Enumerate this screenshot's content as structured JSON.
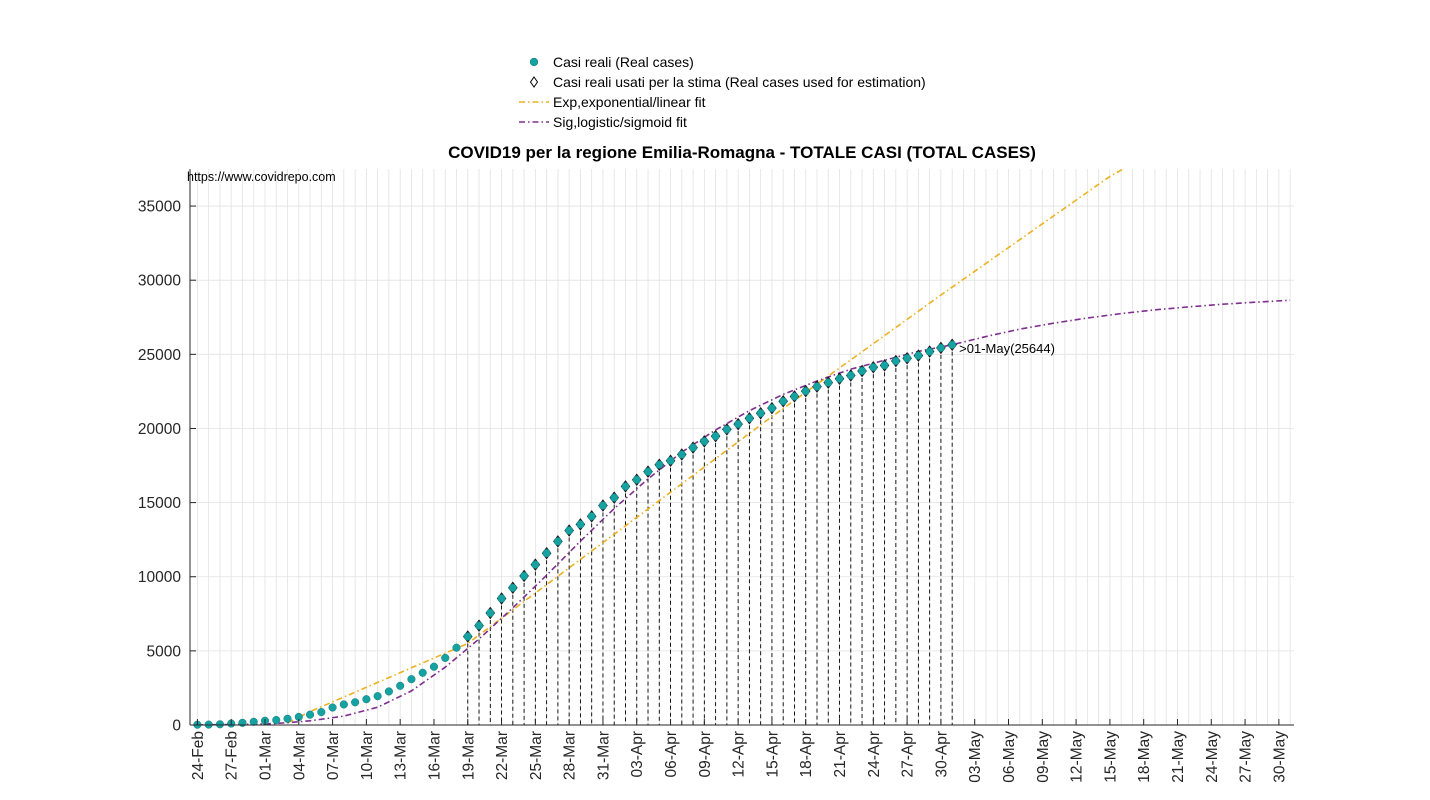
{
  "title": "COVID19 per la regione Emilia-Romagna - TOTALE CASI (TOTAL CASES)",
  "source_url": "https://www.covidrepo.com",
  "colors": {
    "real": "#17a2a2",
    "used_fill": "#2f6f92",
    "exp": "#edb120",
    "sig": "#7e2f8e",
    "grid": "#e2e2e2"
  },
  "legend": [
    {
      "label": "Casi reali (Real cases)",
      "symbol": "filled-circle"
    },
    {
      "label": "Casi reali usati per la stima (Real cases used for estimation)",
      "symbol": "diamond"
    },
    {
      "label": "Exp,exponential/linear fit",
      "symbol": "dashdot-line"
    },
    {
      "label": "Sig,logistic/sigmoid fit",
      "symbol": "dashdot-line"
    }
  ],
  "annotation": {
    "text": ">01-May(25644)"
  },
  "chart_data": {
    "type": "line",
    "title": "COVID19 per la regione Emilia-Romagna - TOTALE CASI (TOTAL CASES)",
    "xlabel": "",
    "ylabel": "",
    "ylim": [
      0,
      37500
    ],
    "yticks": [
      0,
      5000,
      10000,
      15000,
      20000,
      25000,
      30000,
      35000
    ],
    "x_range": [
      "2020-02-24",
      "2020-05-31"
    ],
    "xtick_labels": [
      "24-Feb",
      "27-Feb",
      "01-Mar",
      "04-Mar",
      "07-Mar",
      "10-Mar",
      "13-Mar",
      "16-Mar",
      "19-Mar",
      "22-Mar",
      "25-Mar",
      "28-Mar",
      "31-Mar",
      "03-Apr",
      "06-Apr",
      "09-Apr",
      "12-Apr",
      "15-Apr",
      "18-Apr",
      "21-Apr",
      "24-Apr",
      "27-Apr",
      "30-Apr",
      "03-May",
      "06-May",
      "09-May",
      "12-May",
      "15-May",
      "18-May",
      "21-May",
      "24-May",
      "27-May",
      "30-May"
    ],
    "grid": true,
    "legend_position": "top-center",
    "series": [
      {
        "name": "Casi reali (Real cases)",
        "style": "markers",
        "x": [
          "2020-02-24",
          "2020-02-25",
          "2020-02-26",
          "2020-02-27",
          "2020-02-28",
          "2020-02-29",
          "2020-03-01",
          "2020-03-02",
          "2020-03-03",
          "2020-03-04",
          "2020-03-05",
          "2020-03-06",
          "2020-03-07",
          "2020-03-08",
          "2020-03-09",
          "2020-03-10",
          "2020-03-11",
          "2020-03-12",
          "2020-03-13",
          "2020-03-14",
          "2020-03-15",
          "2020-03-16",
          "2020-03-17",
          "2020-03-18",
          "2020-03-19",
          "2020-03-20",
          "2020-03-21",
          "2020-03-22",
          "2020-03-23",
          "2020-03-24",
          "2020-03-25",
          "2020-03-26",
          "2020-03-27",
          "2020-03-28",
          "2020-03-29",
          "2020-03-30",
          "2020-03-31",
          "2020-04-01",
          "2020-04-02",
          "2020-04-03",
          "2020-04-04",
          "2020-04-05",
          "2020-04-06",
          "2020-04-07",
          "2020-04-08",
          "2020-04-09",
          "2020-04-10",
          "2020-04-11",
          "2020-04-12",
          "2020-04-13",
          "2020-04-14",
          "2020-04-15",
          "2020-04-16",
          "2020-04-17",
          "2020-04-18",
          "2020-04-19",
          "2020-04-20",
          "2020-04-21",
          "2020-04-22",
          "2020-04-23",
          "2020-04-24",
          "2020-04-25",
          "2020-04-26",
          "2020-04-27",
          "2020-04-28",
          "2020-04-29",
          "2020-04-30",
          "2020-05-01"
        ],
        "y": [
          18,
          26,
          47,
          97,
          145,
          217,
          285,
          335,
          420,
          544,
          698,
          870,
          1180,
          1386,
          1533,
          1739,
          1947,
          2263,
          2644,
          3093,
          3522,
          3931,
          4525,
          5214,
          5968,
          6705,
          7555,
          8535,
          9254,
          10054,
          10816,
          11588,
          12383,
          13119,
          13531,
          14074,
          14803,
          15333,
          16093,
          16540,
          17089,
          17556,
          17825,
          18241,
          18710,
          19128,
          19481,
          19936,
          20290,
          20685,
          21029,
          21374,
          21834,
          22160,
          22518,
          22825,
          23094,
          23355,
          23576,
          23879,
          24127,
          24257,
          24547,
          24735,
          24916,
          25188,
          25436,
          25644
        ]
      },
      {
        "name": "Casi reali usati per la stima (Real cases used for estimation)",
        "style": "diamonds",
        "x_from": "2020-03-19",
        "x_to": "2020-05-01",
        "note_values": "same values as real cases for those dates"
      },
      {
        "name": "Exp,exponential/linear fit",
        "style": "dashdot",
        "x": [
          "2020-03-03",
          "2020-03-05",
          "2020-03-19",
          "2020-04-15",
          "2020-04-30",
          "2020-05-15",
          "2020-05-22"
        ],
        "y": [
          150,
          900,
          5500,
          20800,
          29000,
          37000,
          40000
        ]
      },
      {
        "name": "Sig,logistic/sigmoid fit",
        "style": "dashdot",
        "x": [
          "2020-02-24",
          "2020-02-28",
          "2020-03-02",
          "2020-03-05",
          "2020-03-08",
          "2020-03-11",
          "2020-03-14",
          "2020-03-17",
          "2020-03-20",
          "2020-03-23",
          "2020-03-26",
          "2020-03-29",
          "2020-04-01",
          "2020-04-04",
          "2020-04-07",
          "2020-04-10",
          "2020-04-13",
          "2020-04-16",
          "2020-04-19",
          "2020-04-22",
          "2020-04-25",
          "2020-04-28",
          "2020-05-01",
          "2020-05-04",
          "2020-05-07",
          "2020-05-10",
          "2020-05-13",
          "2020-05-16",
          "2020-05-19",
          "2020-05-22",
          "2020-05-25",
          "2020-05-28",
          "2020-05-31"
        ],
        "y": [
          10,
          40,
          100,
          280,
          600,
          1200,
          2300,
          3900,
          5800,
          7900,
          10100,
          12400,
          14600,
          16600,
          18400,
          19900,
          21200,
          22300,
          23200,
          24000,
          24600,
          25200,
          25644,
          26200,
          26700,
          27100,
          27450,
          27750,
          28000,
          28200,
          28380,
          28520,
          28650
        ]
      }
    ]
  }
}
